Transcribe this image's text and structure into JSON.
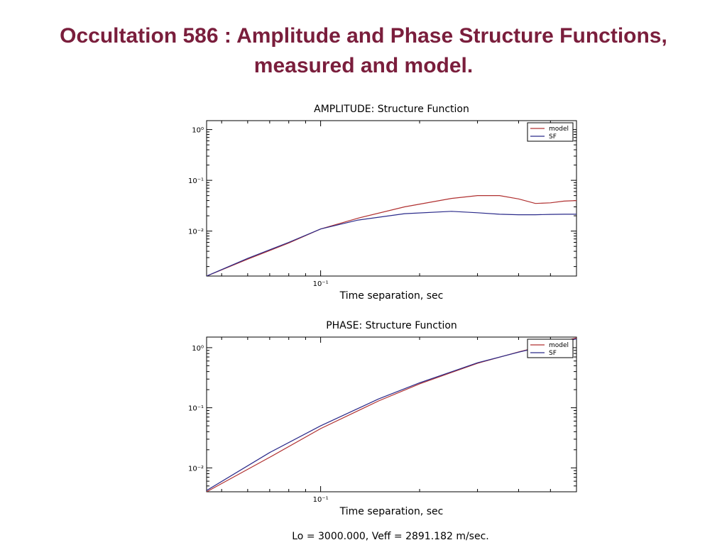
{
  "slide": {
    "title_line1": "Occultation 586 : Amplitude and Phase Structure Functions,",
    "title_line2": "measured and model.",
    "footer": "Lo = 3000.000, Veff = 2891.182  m/sec."
  },
  "colors": {
    "title": "#7a1e3c",
    "model": "#b03030",
    "sf": "#2a2a8a",
    "axis": "#000000"
  },
  "chart_data": [
    {
      "type": "line",
      "title": "AMPLITUDE: Structure Function",
      "xlabel": "Time separation, sec",
      "ylabel": "",
      "x_scale": "log",
      "y_scale": "log",
      "xlim": [
        0.045,
        0.6
      ],
      "ylim": [
        0.0013,
        1.5
      ],
      "x_tick_labels": [
        {
          "value": 0.1,
          "label": "10⁻¹"
        }
      ],
      "y_tick_labels": [
        {
          "value": 1,
          "label": "10⁰"
        },
        {
          "value": 0.1,
          "label": "10⁻¹"
        },
        {
          "value": 0.01,
          "label": "10⁻²"
        }
      ],
      "legend": {
        "placement": "top-right",
        "entries": [
          "model",
          "SF"
        ]
      },
      "series": [
        {
          "name": "model",
          "color": "#b03030",
          "x": [
            0.045,
            0.06,
            0.08,
            0.1,
            0.13,
            0.18,
            0.25,
            0.3,
            0.35,
            0.4,
            0.45,
            0.5,
            0.55,
            0.6
          ],
          "y": [
            0.0013,
            0.0028,
            0.0058,
            0.011,
            0.018,
            0.03,
            0.044,
            0.05,
            0.05,
            0.043,
            0.035,
            0.036,
            0.039,
            0.04
          ]
        },
        {
          "name": "SF",
          "color": "#2a2a8a",
          "x": [
            0.045,
            0.06,
            0.08,
            0.1,
            0.13,
            0.18,
            0.25,
            0.3,
            0.35,
            0.4,
            0.45,
            0.5,
            0.55,
            0.6
          ],
          "y": [
            0.0013,
            0.0029,
            0.006,
            0.011,
            0.0165,
            0.022,
            0.0245,
            0.023,
            0.0215,
            0.021,
            0.021,
            0.0213,
            0.0215,
            0.0215
          ]
        }
      ]
    },
    {
      "type": "line",
      "title": "PHASE:  Structure Function",
      "xlabel": "Time separation, sec",
      "ylabel": "",
      "x_scale": "log",
      "y_scale": "log",
      "xlim": [
        0.045,
        0.6
      ],
      "ylim": [
        0.004,
        1.5
      ],
      "x_tick_labels": [
        {
          "value": 0.1,
          "label": "10⁻¹"
        }
      ],
      "y_tick_labels": [
        {
          "value": 1,
          "label": "10⁰"
        },
        {
          "value": 0.1,
          "label": "10⁻¹"
        },
        {
          "value": 0.01,
          "label": "10⁻²"
        }
      ],
      "legend": {
        "placement": "top-right",
        "entries": [
          "model",
          "SF"
        ]
      },
      "series": [
        {
          "name": "model",
          "color": "#b03030",
          "x": [
            0.045,
            0.07,
            0.1,
            0.15,
            0.2,
            0.3,
            0.4,
            0.5,
            0.6
          ],
          "y": [
            0.004,
            0.015,
            0.045,
            0.13,
            0.25,
            0.55,
            0.85,
            1.15,
            1.45
          ]
        },
        {
          "name": "SF",
          "color": "#2a2a8a",
          "x": [
            0.045,
            0.07,
            0.1,
            0.15,
            0.2,
            0.3,
            0.4,
            0.5,
            0.6
          ],
          "y": [
            0.0042,
            0.018,
            0.05,
            0.14,
            0.26,
            0.56,
            0.84,
            1.12,
            1.4
          ]
        }
      ]
    }
  ]
}
